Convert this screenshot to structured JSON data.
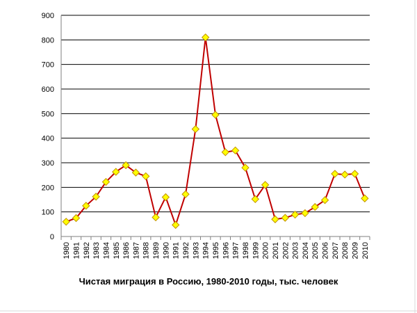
{
  "chart_data": {
    "type": "line",
    "title": "Чистая миграция в Россию, 1980-2010 годы, тыс. человек",
    "xlabel": "",
    "ylabel": "",
    "x": [
      "1980",
      "1981",
      "1982",
      "1983",
      "1984",
      "1985",
      "1986",
      "1987",
      "1988",
      "1989",
      "1990",
      "1991",
      "1992",
      "1993",
      "1994",
      "1995",
      "1996",
      "1997",
      "1998",
      "1999",
      "2000",
      "2001",
      "2002",
      "2003",
      "2004",
      "2005",
      "2006",
      "2007",
      "2008",
      "2009",
      "2010"
    ],
    "series": [
      {
        "values": [
          60,
          75,
          125,
          162,
          222,
          263,
          290,
          260,
          245,
          78,
          160,
          47,
          172,
          437,
          810,
          495,
          343,
          350,
          280,
          152,
          210,
          70,
          76,
          89,
          95,
          120,
          148,
          255,
          252,
          255,
          155
        ],
        "line_color": "#c00000",
        "marker_fill": "#ffff00",
        "marker_stroke": "#c09000"
      }
    ],
    "ylim": [
      0,
      900
    ],
    "yticks": [
      0,
      100,
      200,
      300,
      400,
      500,
      600,
      700,
      800,
      900
    ],
    "grid": true,
    "legend": "none"
  }
}
